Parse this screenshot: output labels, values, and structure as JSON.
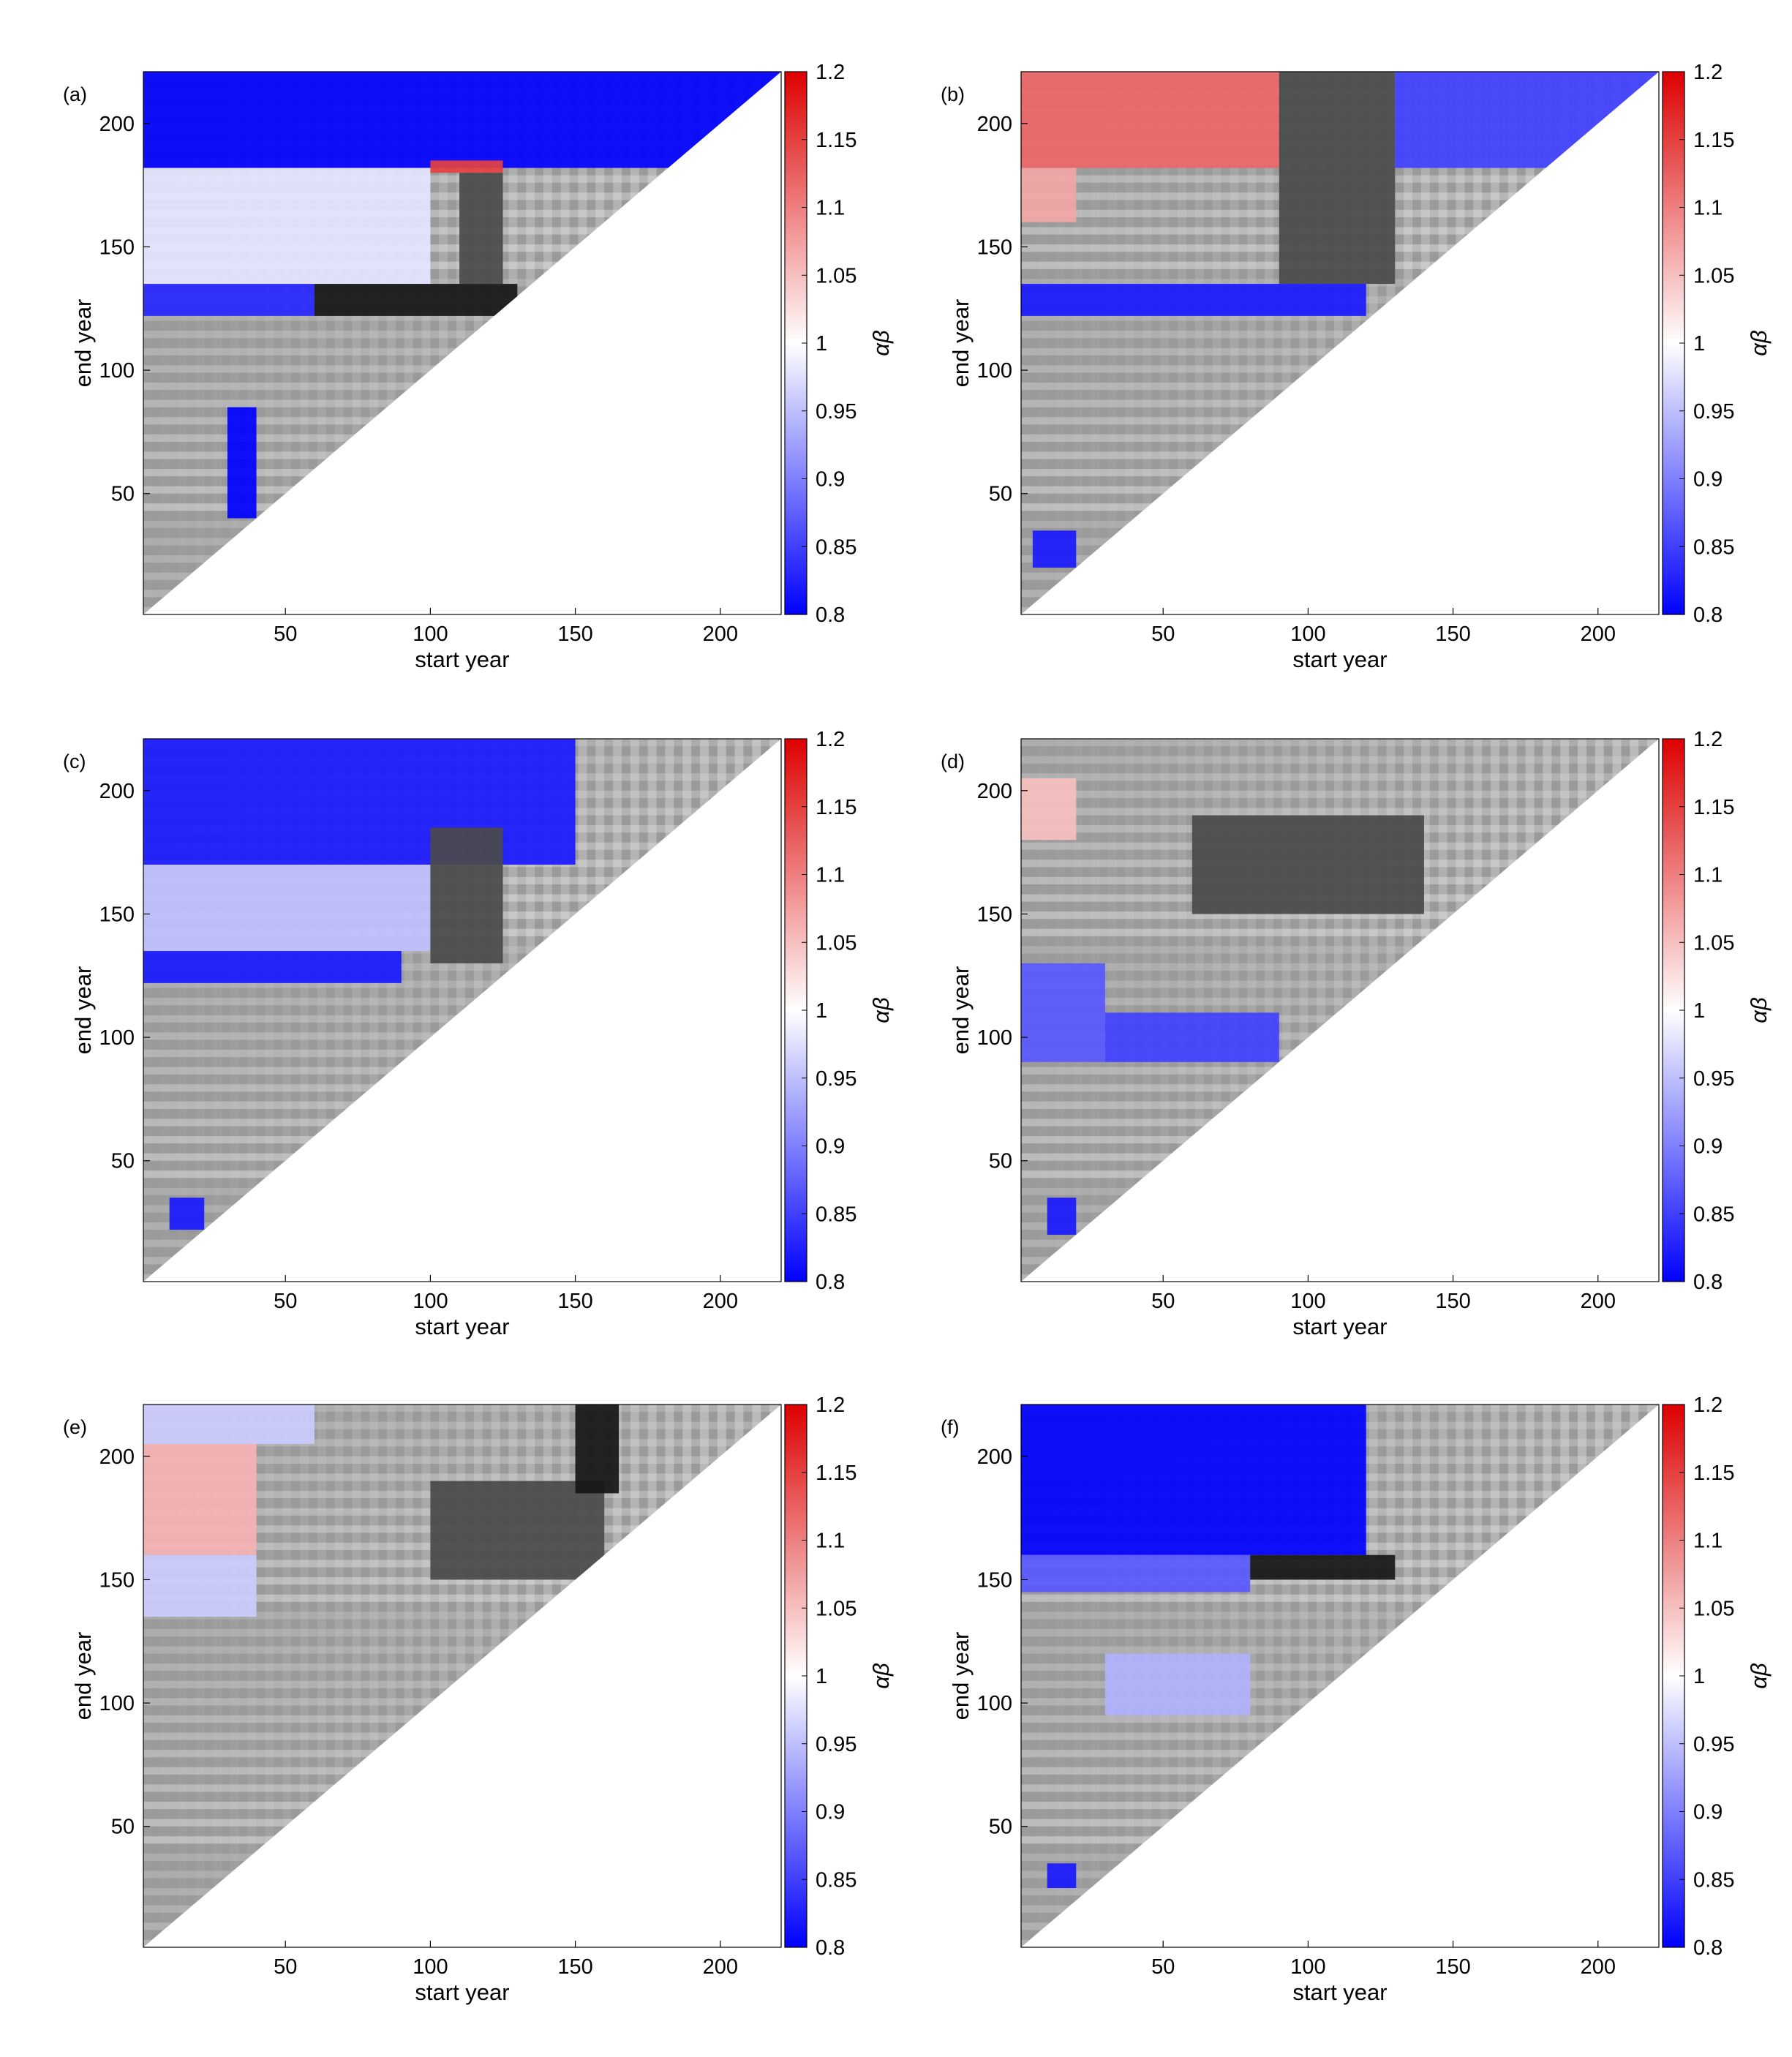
{
  "figure": {
    "colors": {
      "low": "#0000ff",
      "mid": "#ffffff",
      "high": "#dd0000",
      "grey_dark": "#4a4a4a",
      "grey_black": "#161616"
    }
  },
  "chart_data": [
    {
      "type": "heatmap",
      "panel_label": "(a)",
      "xlabel": "start year",
      "ylabel": "end year",
      "xticks": [
        50,
        100,
        150,
        200
      ],
      "yticks": [
        50,
        100,
        150,
        200
      ],
      "xlim": [
        1,
        221
      ],
      "ylim": [
        1,
        221
      ],
      "colorbar": {
        "label": "αβ",
        "min": 0.8,
        "max": 1.2,
        "ticks": [
          "0.8",
          "0.85",
          "0.9",
          "0.95",
          "1",
          "1.05",
          "1.1",
          "1.15",
          "1.2"
        ]
      },
      "regions": [
        {
          "x": [
            1,
            221
          ],
          "y": [
            182,
            221
          ],
          "value": 0.8
        },
        {
          "x": [
            1,
            100
          ],
          "y": [
            135,
            182
          ],
          "value": 0.98
        },
        {
          "x": [
            1,
            60
          ],
          "y": [
            122,
            135
          ],
          "value": 0.83
        },
        {
          "x": [
            60,
            130
          ],
          "y": [
            122,
            135
          ],
          "value": 0.68
        },
        {
          "x": [
            100,
            125
          ],
          "y": [
            180,
            185
          ],
          "value": 1.15
        },
        {
          "x": [
            110,
            125
          ],
          "y": [
            135,
            180
          ],
          "value": 0.74
        },
        {
          "x": [
            30,
            40
          ],
          "y": [
            40,
            85
          ],
          "value": 0.8
        }
      ]
    },
    {
      "type": "heatmap",
      "panel_label": "(b)",
      "xlabel": "start year",
      "ylabel": "end year",
      "xticks": [
        50,
        100,
        150,
        200
      ],
      "yticks": [
        50,
        100,
        150,
        200
      ],
      "xlim": [
        1,
        221
      ],
      "ylim": [
        1,
        221
      ],
      "colorbar": {
        "label": "αβ",
        "min": 0.8,
        "max": 1.2,
        "ticks": [
          "0.8",
          "0.85",
          "0.9",
          "0.95",
          "1",
          "1.05",
          "1.1",
          "1.15",
          "1.2"
        ]
      },
      "regions": [
        {
          "x": [
            1,
            90
          ],
          "y": [
            182,
            221
          ],
          "value": 1.12
        },
        {
          "x": [
            90,
            130
          ],
          "y": [
            182,
            221
          ],
          "value": 0.72
        },
        {
          "x": [
            130,
            221
          ],
          "y": [
            182,
            221
          ],
          "value": 0.85
        },
        {
          "x": [
            1,
            20
          ],
          "y": [
            160,
            182
          ],
          "value": 1.07
        },
        {
          "x": [
            90,
            130
          ],
          "y": [
            135,
            182
          ],
          "value": 0.72
        },
        {
          "x": [
            1,
            120
          ],
          "y": [
            122,
            135
          ],
          "value": 0.82
        },
        {
          "x": [
            5,
            20
          ],
          "y": [
            20,
            35
          ],
          "value": 0.82
        }
      ]
    },
    {
      "type": "heatmap",
      "panel_label": "(c)",
      "xlabel": "start year",
      "ylabel": "end year",
      "xticks": [
        50,
        100,
        150,
        200
      ],
      "yticks": [
        50,
        100,
        150,
        200
      ],
      "xlim": [
        1,
        221
      ],
      "ylim": [
        1,
        221
      ],
      "colorbar": {
        "label": "αβ",
        "min": 0.8,
        "max": 1.2,
        "ticks": [
          "0.8",
          "0.85",
          "0.9",
          "0.95",
          "1",
          "1.05",
          "1.1",
          "1.15",
          "1.2"
        ]
      },
      "regions": [
        {
          "x": [
            1,
            150
          ],
          "y": [
            170,
            221
          ],
          "value": 0.82
        },
        {
          "x": [
            1,
            100
          ],
          "y": [
            135,
            170
          ],
          "value": 0.95
        },
        {
          "x": [
            100,
            125
          ],
          "y": [
            130,
            185
          ],
          "value": 0.72
        },
        {
          "x": [
            1,
            90
          ],
          "y": [
            122,
            135
          ],
          "value": 0.82
        },
        {
          "x": [
            10,
            22
          ],
          "y": [
            22,
            35
          ],
          "value": 0.82
        }
      ]
    },
    {
      "type": "heatmap",
      "panel_label": "(d)",
      "xlabel": "start year",
      "ylabel": "end year",
      "xticks": [
        50,
        100,
        150,
        200
      ],
      "yticks": [
        50,
        100,
        150,
        200
      ],
      "xlim": [
        1,
        221
      ],
      "ylim": [
        1,
        221
      ],
      "colorbar": {
        "label": "αβ",
        "min": 0.8,
        "max": 1.2,
        "ticks": [
          "0.8",
          "0.85",
          "0.9",
          "0.95",
          "1",
          "1.05",
          "1.1",
          "1.15",
          "1.2"
        ]
      },
      "regions": [
        {
          "x": [
            1,
            20
          ],
          "y": [
            180,
            205
          ],
          "value": 1.05
        },
        {
          "x": [
            60,
            140
          ],
          "y": [
            150,
            190
          ],
          "value": 0.72
        },
        {
          "x": [
            1,
            30
          ],
          "y": [
            90,
            130
          ],
          "value": 0.87
        },
        {
          "x": [
            30,
            90
          ],
          "y": [
            90,
            110
          ],
          "value": 0.85
        },
        {
          "x": [
            10,
            20
          ],
          "y": [
            20,
            35
          ],
          "value": 0.82
        }
      ]
    },
    {
      "type": "heatmap",
      "panel_label": "(e)",
      "xlabel": "start year",
      "ylabel": "end year",
      "xticks": [
        50,
        100,
        150,
        200
      ],
      "yticks": [
        50,
        100,
        150,
        200
      ],
      "xlim": [
        1,
        221
      ],
      "ylim": [
        1,
        221
      ],
      "colorbar": {
        "label": "αβ",
        "min": 0.8,
        "max": 1.2,
        "ticks": [
          "0.8",
          "0.85",
          "0.9",
          "0.95",
          "1",
          "1.05",
          "1.1",
          "1.15",
          "1.2"
        ]
      },
      "regions": [
        {
          "x": [
            1,
            40
          ],
          "y": [
            160,
            205
          ],
          "value": 1.06
        },
        {
          "x": [
            1,
            60
          ],
          "y": [
            205,
            221
          ],
          "value": 0.96
        },
        {
          "x": [
            1,
            40
          ],
          "y": [
            135,
            160
          ],
          "value": 0.96
        },
        {
          "x": [
            100,
            160
          ],
          "y": [
            150,
            190
          ],
          "value": 0.74
        },
        {
          "x": [
            150,
            165
          ],
          "y": [
            185,
            221
          ],
          "value": 0.68
        }
      ]
    },
    {
      "type": "heatmap",
      "panel_label": "(f)",
      "xlabel": "start year",
      "ylabel": "end year",
      "xticks": [
        50,
        100,
        150,
        200
      ],
      "yticks": [
        50,
        100,
        150,
        200
      ],
      "xlim": [
        1,
        221
      ],
      "ylim": [
        1,
        221
      ],
      "colorbar": {
        "label": "αβ",
        "min": 0.8,
        "max": 1.2,
        "ticks": [
          "0.8",
          "0.85",
          "0.9",
          "0.95",
          "1",
          "1.05",
          "1.1",
          "1.15",
          "1.2"
        ]
      },
      "regions": [
        {
          "x": [
            1,
            120
          ],
          "y": [
            160,
            221
          ],
          "value": 0.8
        },
        {
          "x": [
            1,
            80
          ],
          "y": [
            145,
            160
          ],
          "value": 0.87
        },
        {
          "x": [
            80,
            130
          ],
          "y": [
            150,
            160
          ],
          "value": 0.68
        },
        {
          "x": [
            30,
            80
          ],
          "y": [
            95,
            120
          ],
          "value": 0.94
        },
        {
          "x": [
            10,
            20
          ],
          "y": [
            25,
            35
          ],
          "value": 0.82
        }
      ]
    }
  ]
}
